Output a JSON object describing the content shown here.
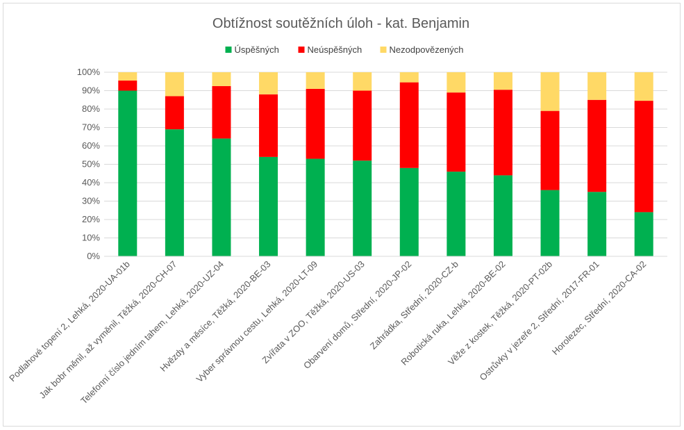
{
  "chart_data": {
    "type": "bar",
    "stacked": true,
    "percent": true,
    "title": "Obtížnost soutěžních úloh - kat. Benjamin",
    "categories": [
      "Podlahové topení 2, Lehká, 2020-UA-01b",
      "Jak bobr měnil, až vyměnil, Těžká, 2020-CH-07",
      "Telefonní číslo jedním tahem, Lehká, 2020-UZ-04",
      "Hvězdy a měsíce, Těžká, 2020-BE-03",
      "Vyber správnou cestu, Lehká, 2020-LT-09",
      "Zvířata v ZOO, Těžká, 2020-US-03",
      "Obarvení domů, Střední, 2020-JP-02",
      "Zahrádka, Střední, 2020-CZ-b",
      "Robotická ruka, Lehká, 2020-BE-02",
      "Věže z kostek, Těžká, 2020-PT-02b",
      "Ostrůvky v jezeře 2, Střední, 2017-FR-01",
      "Horolezec, Střední, 2020-CA-02"
    ],
    "series": [
      {
        "name": "Úspěšných",
        "color": "#00b050",
        "values": [
          90,
          69,
          64,
          54,
          53,
          52,
          48,
          46,
          44,
          36,
          35,
          24
        ]
      },
      {
        "name": "Neúspěšných",
        "color": "#ff0000",
        "values": [
          5.5,
          18,
          28.5,
          34,
          38,
          38,
          46.5,
          43,
          46.5,
          43,
          50,
          60.5
        ]
      },
      {
        "name": "Nezodpovězených",
        "color": "#ffd966",
        "values": [
          4.5,
          13,
          7.5,
          12,
          9,
          10,
          5.5,
          11,
          9.5,
          21,
          15,
          15.5
        ]
      }
    ],
    "ylim": [
      0,
      100
    ],
    "yticks": [
      "0%",
      "10%",
      "20%",
      "30%",
      "40%",
      "50%",
      "60%",
      "70%",
      "80%",
      "90%",
      "100%"
    ],
    "grid": true,
    "legend_position": "top"
  }
}
